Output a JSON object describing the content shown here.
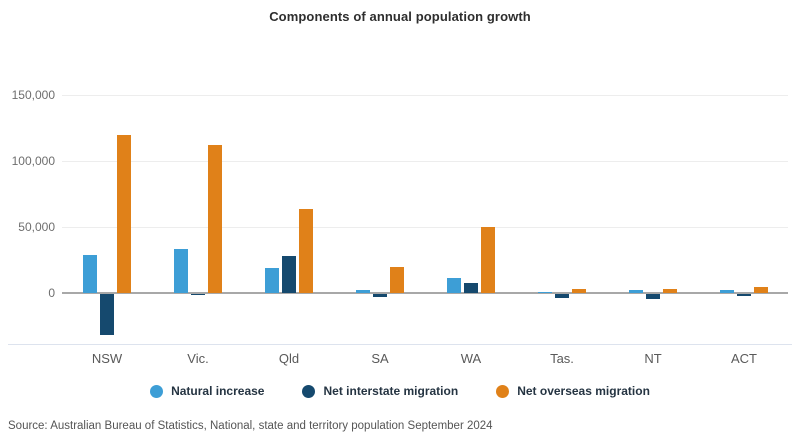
{
  "title": "Components of annual population growth",
  "source": "Source: Australian Bureau of Statistics, National, state and territory population September 2024",
  "colors": {
    "natural_increase": "#3d9ed6",
    "net_interstate_migration": "#15496e",
    "net_overseas_migration": "#e08119",
    "gridline": "#ededed",
    "zero_line": "#a8a8a8",
    "axis_line": "#dde3ee"
  },
  "chart_data": {
    "type": "bar",
    "title": "Components of annual population growth",
    "categories": [
      "NSW",
      "Vic.",
      "Qld",
      "SA",
      "WA",
      "Tas.",
      "NT",
      "ACT"
    ],
    "series": [
      {
        "name": "Natural increase",
        "color": "#3d9ed6",
        "values": [
          29000,
          33000,
          19000,
          2000,
          11000,
          500,
          2000,
          2300
        ]
      },
      {
        "name": "Net interstate migration",
        "color": "#15496e",
        "values": [
          -31000,
          -1000,
          28000,
          -2500,
          7500,
          -3000,
          -3500,
          -1500
        ]
      },
      {
        "name": "Net overseas migration",
        "color": "#e08119",
        "values": [
          120000,
          112000,
          64000,
          20000,
          50000,
          3200,
          2800,
          4500
        ]
      }
    ],
    "yticks": [
      {
        "value": 0,
        "label": "0"
      },
      {
        "value": 50000,
        "label": "50,000"
      },
      {
        "value": 100000,
        "label": "100,000"
      },
      {
        "value": 150000,
        "label": "150,000"
      }
    ],
    "ylim": [
      -35000,
      160000
    ],
    "grid": true,
    "legend_position": "bottom",
    "xlabel": "",
    "ylabel": ""
  }
}
